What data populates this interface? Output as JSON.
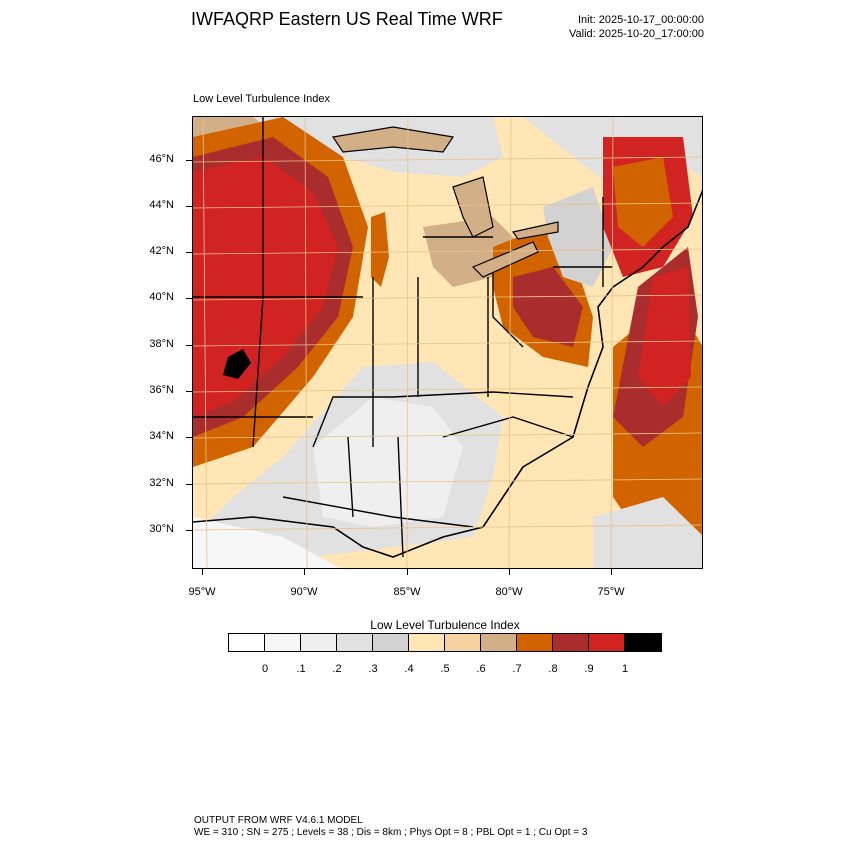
{
  "header": {
    "title": "IWFAQRP Eastern US Real Time WRF",
    "init": "Init: 2025-10-17_00:00:00",
    "valid": "Valid: 2025-10-20_17:00:00"
  },
  "map": {
    "field_label": "Low Level Turbulence Index",
    "lat_labels": [
      "46°N",
      "44°N",
      "42°N",
      "40°N",
      "38°N",
      "36°N",
      "34°N",
      "32°N",
      "30°N"
    ],
    "lon_labels": [
      "95°W",
      "90°W",
      "85°W",
      "80°W",
      "75°W"
    ]
  },
  "colorbar": {
    "title": "Low Level Turbulence Index",
    "colors": [
      "#ffffff",
      "#f7f7f7",
      "#efefef",
      "#e1e1e1",
      "#d2d2d2",
      "#ffe6b4",
      "#f5d2a0",
      "#d2af87",
      "#d26400",
      "#aa2d2d",
      "#d22323",
      "#000000"
    ],
    "labels": [
      "0",
      ".1",
      ".2",
      ".3",
      ".4",
      ".5",
      ".6",
      ".7",
      ".8",
      ".9",
      "1"
    ]
  },
  "footer": {
    "line1": "OUTPUT FROM WRF V4.6.1 MODEL",
    "line2": "WE = 310 ; SN = 275 ; Levels = 38 ; Dis = 8km ; Phys Opt = 8 ; PBL Opt = 1 ; Cu Opt = 3"
  }
}
